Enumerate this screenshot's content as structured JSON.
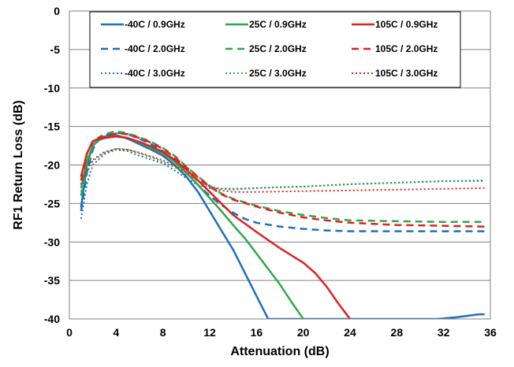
{
  "chart_data": {
    "type": "line",
    "xlabel": "Attenuation  (dB)",
    "ylabel": "RF1 Return Loss  (dB)",
    "xlim": [
      0,
      36
    ],
    "ylim": [
      -40,
      0
    ],
    "x_ticks": [
      0,
      4,
      8,
      12,
      16,
      20,
      24,
      28,
      32,
      36
    ],
    "y_ticks": [
      0,
      -5,
      -10,
      -15,
      -20,
      -25,
      -30,
      -35,
      -40
    ],
    "grid": "horizontal",
    "legend": {
      "placement": "top",
      "columns": 3
    },
    "series": [
      {
        "name": "-40C /  0.9GHz",
        "color": "#1f6fbf",
        "dash": "solid",
        "points": [
          [
            1,
            -25.5
          ],
          [
            1.5,
            -20
          ],
          [
            2,
            -17.5
          ],
          [
            2.5,
            -16.7
          ],
          [
            3,
            -16.4
          ],
          [
            3.5,
            -16.2
          ],
          [
            4,
            -16.1
          ],
          [
            5,
            -16.6
          ],
          [
            6,
            -17.3
          ],
          [
            7,
            -18
          ],
          [
            8,
            -18.8
          ],
          [
            9,
            -20
          ],
          [
            10,
            -21.5
          ],
          [
            11,
            -23.5
          ],
          [
            12,
            -26
          ],
          [
            13,
            -28.5
          ],
          [
            14,
            -31
          ],
          [
            15,
            -34
          ],
          [
            16,
            -37
          ],
          [
            17,
            -40
          ],
          [
            31.5,
            -40
          ],
          [
            33,
            -39.8
          ],
          [
            34,
            -39.6
          ],
          [
            35,
            -39.4
          ],
          [
            35.5,
            -39.4
          ]
        ]
      },
      {
        "name": "-40C /  2.0GHz",
        "color": "#1f6fbf",
        "dash": "dashed",
        "points": [
          [
            1,
            -26
          ],
          [
            1.5,
            -21
          ],
          [
            2,
            -18
          ],
          [
            2.5,
            -16.7
          ],
          [
            3,
            -16.2
          ],
          [
            4,
            -15.8
          ],
          [
            5,
            -16
          ],
          [
            6,
            -16.6
          ],
          [
            7,
            -17.3
          ],
          [
            8,
            -18.2
          ],
          [
            9,
            -19.5
          ],
          [
            10,
            -21
          ],
          [
            11,
            -22.6
          ],
          [
            12,
            -24
          ],
          [
            13,
            -25.2
          ],
          [
            14,
            -26.2
          ],
          [
            15,
            -27
          ],
          [
            16,
            -27.5
          ],
          [
            18,
            -28
          ],
          [
            20,
            -28.3
          ],
          [
            22,
            -28.5
          ],
          [
            24,
            -28.6
          ],
          [
            28,
            -28.6
          ],
          [
            32,
            -28.6
          ],
          [
            35.5,
            -28.6
          ]
        ]
      },
      {
        "name": "-40C /  3.0GHz",
        "color": "#1f6fbf",
        "dash": "dotted",
        "points": [
          [
            1,
            -27
          ],
          [
            1.5,
            -22.5
          ],
          [
            2,
            -20
          ],
          [
            3,
            -18.6
          ],
          [
            4,
            -18
          ],
          [
            5,
            -18.2
          ],
          [
            6,
            -18.8
          ],
          [
            7,
            -19.3
          ],
          [
            8,
            -19.8
          ],
          [
            9,
            -20.7
          ],
          [
            10,
            -21.7
          ],
          [
            11,
            -22.6
          ],
          [
            12,
            -23
          ],
          [
            14,
            -23.1
          ],
          [
            16,
            -23
          ],
          [
            18,
            -22.9
          ],
          [
            20,
            -22.8
          ],
          [
            24,
            -22.5
          ],
          [
            28,
            -22.3
          ],
          [
            32,
            -22.1
          ],
          [
            35.5,
            -22
          ]
        ]
      },
      {
        "name": "25C /  0.9GHz",
        "color": "#2ca84a",
        "dash": "solid",
        "points": [
          [
            1,
            -23
          ],
          [
            1.5,
            -19.5
          ],
          [
            2,
            -17.5
          ],
          [
            2.5,
            -16.8
          ],
          [
            3,
            -16.5
          ],
          [
            4,
            -16.2
          ],
          [
            5,
            -16.5
          ],
          [
            6,
            -17.1
          ],
          [
            7,
            -17.8
          ],
          [
            8,
            -18.5
          ],
          [
            9,
            -19.6
          ],
          [
            10,
            -21
          ],
          [
            11,
            -22.6
          ],
          [
            12,
            -24.3
          ],
          [
            13,
            -26
          ],
          [
            14,
            -27.8
          ],
          [
            15,
            -29.5
          ],
          [
            16,
            -31.5
          ],
          [
            17,
            -33.5
          ],
          [
            18,
            -35.5
          ],
          [
            19,
            -37.8
          ],
          [
            20,
            -40
          ]
        ]
      },
      {
        "name": "25C /  2.0GHz",
        "color": "#2ca84a",
        "dash": "dashed",
        "points": [
          [
            1,
            -24
          ],
          [
            1.5,
            -20
          ],
          [
            2,
            -17.5
          ],
          [
            2.5,
            -16.4
          ],
          [
            3,
            -16
          ],
          [
            4,
            -15.6
          ],
          [
            5,
            -15.9
          ],
          [
            6,
            -16.4
          ],
          [
            7,
            -17
          ],
          [
            8,
            -17.8
          ],
          [
            9,
            -18.8
          ],
          [
            10,
            -20.2
          ],
          [
            11,
            -21.5
          ],
          [
            12,
            -22.7
          ],
          [
            13,
            -23.7
          ],
          [
            14,
            -24.4
          ],
          [
            16,
            -25.3
          ],
          [
            18,
            -26
          ],
          [
            20,
            -26.5
          ],
          [
            22,
            -26.9
          ],
          [
            24,
            -27.2
          ],
          [
            28,
            -27.3
          ],
          [
            32,
            -27.4
          ],
          [
            35.5,
            -27.4
          ]
        ]
      },
      {
        "name": "25C /  3.0GHz",
        "color": "#2ca84a",
        "dash": "dotted",
        "points": [
          [
            1,
            -23.5
          ],
          [
            1.5,
            -21
          ],
          [
            2,
            -19.5
          ],
          [
            3,
            -18.4
          ],
          [
            4,
            -17.9
          ],
          [
            5,
            -18
          ],
          [
            6,
            -18.5
          ],
          [
            7,
            -19
          ],
          [
            8,
            -19.6
          ],
          [
            9,
            -20.3
          ],
          [
            10,
            -21.2
          ],
          [
            11,
            -22.1
          ],
          [
            12,
            -22.8
          ],
          [
            13,
            -23.1
          ],
          [
            14,
            -23.2
          ],
          [
            16,
            -23
          ],
          [
            18,
            -22.9
          ],
          [
            20,
            -22.8
          ],
          [
            24,
            -22.5
          ],
          [
            28,
            -22.3
          ],
          [
            32,
            -22.1
          ],
          [
            35.5,
            -22.1
          ]
        ]
      },
      {
        "name": "105C /  0.9GHz",
        "color": "#e02020",
        "dash": "solid",
        "points": [
          [
            1,
            -21.5
          ],
          [
            1.5,
            -18.5
          ],
          [
            2,
            -16.9
          ],
          [
            2.5,
            -16.6
          ],
          [
            3,
            -16.5
          ],
          [
            4,
            -16.3
          ],
          [
            5,
            -16.5
          ],
          [
            6,
            -17
          ],
          [
            7,
            -17.6
          ],
          [
            8,
            -18.3
          ],
          [
            9,
            -19.3
          ],
          [
            10,
            -20.6
          ],
          [
            11,
            -22
          ],
          [
            12,
            -23.5
          ],
          [
            13,
            -25
          ],
          [
            14,
            -26.5
          ],
          [
            16,
            -28.7
          ],
          [
            18,
            -30.8
          ],
          [
            20,
            -32.7
          ],
          [
            21,
            -34
          ],
          [
            22,
            -35.8
          ],
          [
            23,
            -38
          ],
          [
            24,
            -40
          ]
        ]
      },
      {
        "name": "105C /  2.0GHz",
        "color": "#e02020",
        "dash": "dashed",
        "points": [
          [
            1,
            -22
          ],
          [
            1.5,
            -18.5
          ],
          [
            2,
            -17
          ],
          [
            2.5,
            -16.5
          ],
          [
            3,
            -16.3
          ],
          [
            4,
            -15.9
          ],
          [
            5,
            -16
          ],
          [
            6,
            -16.5
          ],
          [
            7,
            -17.1
          ],
          [
            8,
            -17.9
          ],
          [
            9,
            -19
          ],
          [
            10,
            -20.3
          ],
          [
            11,
            -21.6
          ],
          [
            12,
            -22.8
          ],
          [
            13,
            -23.8
          ],
          [
            14,
            -24.5
          ],
          [
            16,
            -25.4
          ],
          [
            18,
            -26.2
          ],
          [
            20,
            -26.8
          ],
          [
            22,
            -27.2
          ],
          [
            24,
            -27.5
          ],
          [
            28,
            -27.8
          ],
          [
            32,
            -27.9
          ],
          [
            35.5,
            -28
          ]
        ]
      },
      {
        "name": "105C /  3.0GHz",
        "color": "#e02020",
        "dash": "dotted",
        "points": [
          [
            1,
            -22.5
          ],
          [
            1.5,
            -20.5
          ],
          [
            2,
            -19.3
          ],
          [
            3,
            -18.3
          ],
          [
            4,
            -17.9
          ],
          [
            5,
            -18
          ],
          [
            6,
            -18.4
          ],
          [
            7,
            -18.9
          ],
          [
            8,
            -19.4
          ],
          [
            9,
            -20.1
          ],
          [
            10,
            -21
          ],
          [
            11,
            -22
          ],
          [
            12,
            -22.8
          ],
          [
            13,
            -23.3
          ],
          [
            14,
            -23.5
          ],
          [
            16,
            -23.5
          ],
          [
            20,
            -23.4
          ],
          [
            24,
            -23.3
          ],
          [
            28,
            -23.2
          ],
          [
            32,
            -23.1
          ],
          [
            35.5,
            -23
          ]
        ]
      }
    ]
  }
}
